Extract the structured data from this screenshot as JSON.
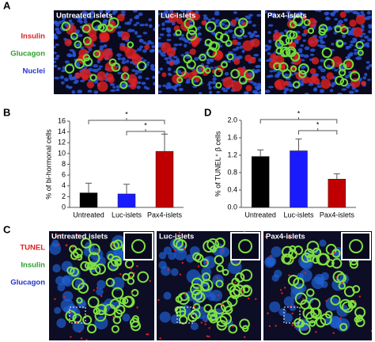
{
  "panel_a": {
    "letter": "A",
    "legend": [
      {
        "text": "Insulin",
        "color": "#e02020"
      },
      {
        "text": "Glucagon",
        "color": "#2e9e2e"
      },
      {
        "text": "Nuclei",
        "color": "#2233cc"
      }
    ],
    "images": [
      {
        "title": "Untreated islets"
      },
      {
        "title": "Luc-islets"
      },
      {
        "title": "Pax4-islets"
      }
    ]
  },
  "chart_data": [
    {
      "type": "bar",
      "panel_label": "B",
      "ylabel": "% of bi-hormonal cells",
      "categories": [
        "Untreated",
        "Luc-islets",
        "Pax4-islets"
      ],
      "values": [
        2.7,
        2.5,
        10.4
      ],
      "errors": [
        1.8,
        1.8,
        3.2
      ],
      "colors": [
        "#000000",
        "#1a1aff",
        "#c00000"
      ],
      "ylim": [
        0,
        16
      ],
      "yticks": [
        0,
        2,
        4,
        6,
        8,
        10,
        12,
        14,
        16
      ],
      "annotations": [
        "*",
        "*"
      ]
    },
    {
      "type": "bar",
      "panel_label": "D",
      "ylabel": "% of TUNEL⁺ β cells",
      "categories": [
        "Untreated",
        "Luc-islets",
        "Pax4-islets"
      ],
      "values": [
        1.17,
        1.3,
        0.65
      ],
      "errors": [
        0.15,
        0.27,
        0.12
      ],
      "colors": [
        "#000000",
        "#1a1aff",
        "#c00000"
      ],
      "ylim": [
        0,
        2
      ],
      "yticks": [
        {
          "value": 0,
          "label": "0.0"
        },
        0.4,
        0.8,
        1.2,
        1.6,
        {
          "value": 2,
          "label": "2.0"
        }
      ],
      "annotations": [
        "*",
        "*"
      ]
    }
  ],
  "panel_c": {
    "letter": "C",
    "legend": [
      {
        "text": "TUNEL",
        "color": "#e02020"
      },
      {
        "text": "Insulin",
        "color": "#2e9e2e"
      },
      {
        "text": "Glucagon",
        "color": "#2233cc"
      }
    ],
    "images": [
      {
        "title": "Untreated islets"
      },
      {
        "title": "Luc-islets"
      },
      {
        "title": "Pax4-islets"
      }
    ]
  }
}
